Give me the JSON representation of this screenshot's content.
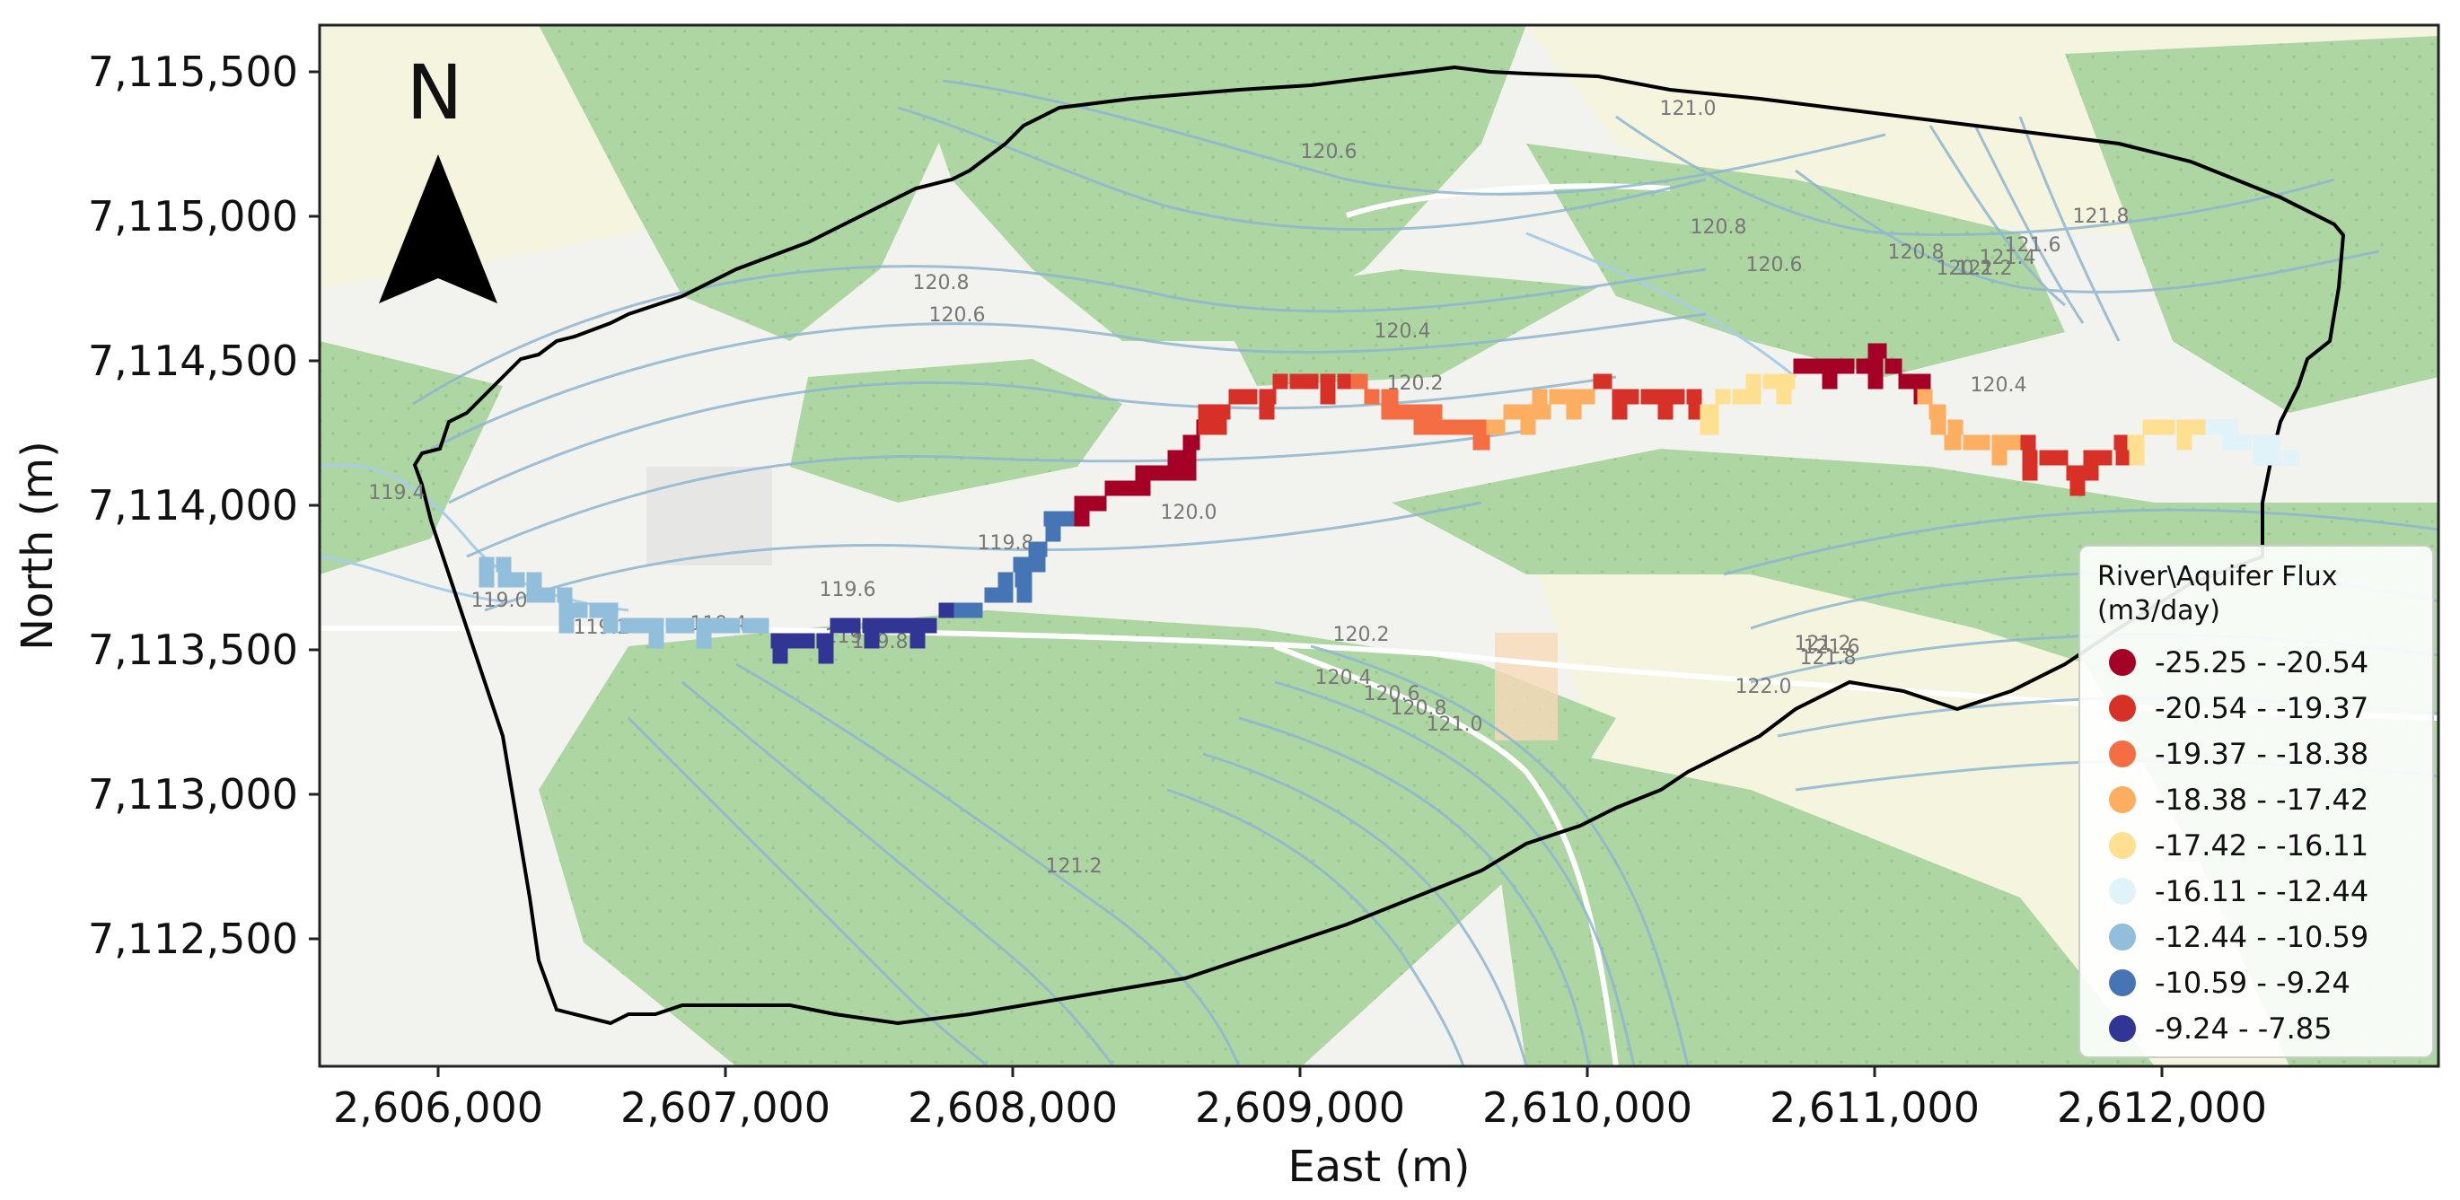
{
  "map": {
    "north_label": "N",
    "xlabel": "East (m)",
    "ylabel": "North (m)",
    "x_ticks": [
      "2,606,000",
      "2,607,000",
      "2,608,000",
      "2,609,000",
      "2,610,000",
      "2,611,000",
      "2,612,000"
    ],
    "y_ticks": [
      "7,115,500",
      "7,115,000",
      "7,114,500",
      "7,114,000",
      "7,113,500",
      "7,113,000",
      "7,112,500"
    ],
    "xlim": [
      2605600,
      2612900
    ],
    "ylim": [
      7112100,
      7115650
    ],
    "contour_labels": [
      "121.0",
      "120.6",
      "120.8",
      "120.6",
      "120.4",
      "120.2",
      "120.0",
      "119.8",
      "119.6",
      "119.4",
      "119.2",
      "119.0",
      "119.4",
      "119.8",
      "119.8",
      "120.8",
      "120.6",
      "120.8",
      "121.8",
      "121.6",
      "121.4",
      "121.2",
      "120.2",
      "120.4",
      "120.2",
      "120.4",
      "120.6",
      "120.8",
      "121.0",
      "122.0",
      "121.2",
      "121.6",
      "121.8",
      "121.2"
    ],
    "colors": {
      "forest": "#aed6a3",
      "open_land": "#f2f2ee",
      "farmland": "#f4f4df",
      "contour": "#8fb6cf",
      "boundary": "#000000"
    }
  },
  "legend": {
    "title_line1": "River\\Aquifer Flux",
    "title_line2": "(m3/day)",
    "classes": [
      {
        "label": "-25.25 - -20.54",
        "color": "#a50026"
      },
      {
        "label": "-20.54 - -19.37",
        "color": "#d73027"
      },
      {
        "label": "-19.37 - -18.38",
        "color": "#f46d43"
      },
      {
        "label": "-18.38 - -17.42",
        "color": "#fdae61"
      },
      {
        "label": "-17.42 - -16.11",
        "color": "#fee090"
      },
      {
        "label": "-16.11 - -12.44",
        "color": "#e0f3f8"
      },
      {
        "label": "-12.44 - -10.59",
        "color": "#91bfdb"
      },
      {
        "label": "-10.59 - -9.24",
        "color": "#4575b4"
      },
      {
        "label": "-9.24 - -7.85",
        "color": "#313695"
      }
    ]
  },
  "river_path": [
    [
      2606180,
      7113820
    ],
    [
      2606500,
      7113650
    ],
    [
      2606700,
      7113620
    ],
    [
      2607000,
      7113610
    ],
    [
      2607200,
      7113560
    ],
    [
      2607400,
      7113580
    ],
    [
      2607600,
      7113600
    ],
    [
      2607800,
      7113640
    ],
    [
      2608000,
      7113760
    ],
    [
      2608150,
      7113950
    ],
    [
      2608350,
      7114080
    ],
    [
      2608550,
      7114150
    ],
    [
      2608700,
      7114350
    ],
    [
      2608950,
      7114430
    ],
    [
      2609200,
      7114410
    ],
    [
      2609400,
      7114320
    ],
    [
      2609600,
      7114280
    ],
    [
      2609800,
      7114350
    ],
    [
      2610000,
      7114420
    ],
    [
      2610200,
      7114380
    ],
    [
      2610400,
      7114350
    ],
    [
      2610550,
      7114420
    ],
    [
      2610750,
      7114480
    ],
    [
      2610950,
      7114520
    ],
    [
      2611100,
      7114430
    ],
    [
      2611250,
      7114250
    ],
    [
      2611450,
      7114220
    ],
    [
      2611650,
      7114140
    ],
    [
      2611850,
      7114250
    ],
    [
      2612050,
      7114300
    ],
    [
      2612200,
      7114260
    ],
    [
      2612380,
      7114170
    ]
  ]
}
